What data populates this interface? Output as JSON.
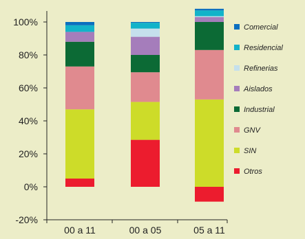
{
  "chart_data": {
    "type": "bar",
    "stacked": true,
    "categories": [
      "00 a 11",
      "00 a 05",
      "05 a 11"
    ],
    "ylim": [
      -20,
      105
    ],
    "yticks": [
      -20,
      0,
      20,
      40,
      60,
      80,
      100
    ],
    "ytick_labels": [
      "-20%",
      "0%",
      "20%",
      "40%",
      "60%",
      "80%",
      "100%"
    ],
    "grid": false,
    "legend_position": "right",
    "series": [
      {
        "name": "Otros",
        "color": "#ec1c2e",
        "values": [
          5,
          28.5,
          -9
        ]
      },
      {
        "name": "SIN",
        "color": "#cddc29",
        "values": [
          42,
          23,
          53
        ]
      },
      {
        "name": "GNV",
        "color": "#e08a8f",
        "values": [
          26,
          18,
          30
        ]
      },
      {
        "name": "Industrial",
        "color": "#0c6a35",
        "values": [
          15,
          10.5,
          17
        ]
      },
      {
        "name": "Aislados",
        "color": "#a57dbb",
        "values": [
          6,
          11,
          3
        ]
      },
      {
        "name": "Refinerias",
        "color": "#c5e0ec",
        "values": [
          0,
          5,
          0.5
        ]
      },
      {
        "name": "Residencial",
        "color": "#12b3c9",
        "values": [
          4,
          3.5,
          3.5
        ]
      },
      {
        "name": "Comercial",
        "color": "#0a6fbf",
        "values": [
          2,
          0.5,
          1
        ]
      }
    ]
  }
}
